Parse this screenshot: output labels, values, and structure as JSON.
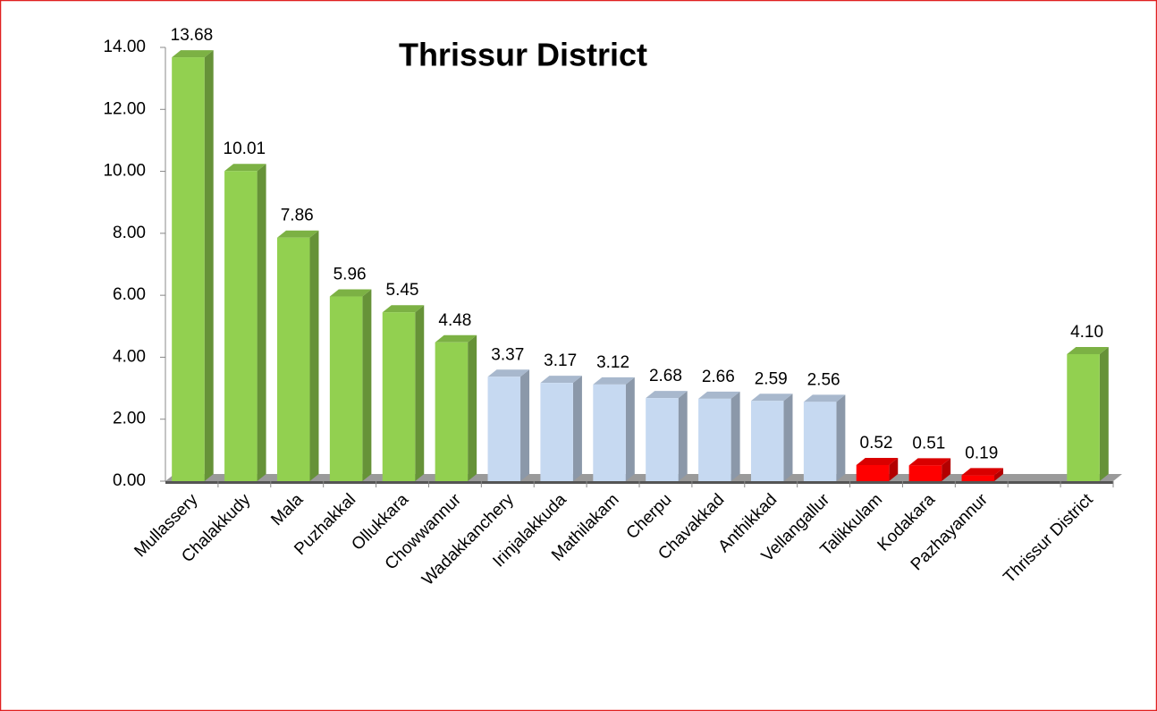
{
  "chart_data": {
    "type": "bar3d",
    "title": "Thrissur District",
    "categories": [
      "Mullassery",
      "Chalakkudy",
      "Mala",
      "Puzhakkal",
      "Ollukkara",
      "Chowwannur",
      "Wadakkanchery",
      "Irinjalakkuda",
      "Mathilakam",
      "Cherpu",
      "Chavakkad",
      "Anthikkad",
      "Vellangallur",
      "Talikkulam",
      "Kodakara",
      "Pazhayannur",
      null,
      "Thrissur District"
    ],
    "values": [
      13.68,
      10.01,
      7.86,
      5.96,
      5.45,
      4.48,
      3.37,
      3.17,
      3.12,
      2.68,
      2.66,
      2.59,
      2.56,
      0.52,
      0.51,
      0.19,
      null,
      4.1
    ],
    "value_labels": [
      "13.68",
      "10.01",
      "7.86",
      "5.96",
      "5.45",
      "4.48",
      "3.37",
      "3.17",
      "3.12",
      "2.68",
      "2.66",
      "2.59",
      "2.56",
      "0.52",
      "0.51",
      "0.19",
      null,
      "4.10"
    ],
    "colors": [
      "#92d050",
      "#92d050",
      "#92d050",
      "#92d050",
      "#92d050",
      "#92d050",
      "#c6d9f1",
      "#c6d9f1",
      "#c6d9f1",
      "#c6d9f1",
      "#c6d9f1",
      "#c6d9f1",
      "#c6d9f1",
      "#ff0000",
      "#ff0000",
      "#ff0000",
      null,
      "#92d050"
    ],
    "ylim": [
      0,
      14
    ],
    "yticks": [
      {
        "value": 0,
        "label": "0.00"
      },
      {
        "value": 2,
        "label": "2.00"
      },
      {
        "value": 4,
        "label": "4.00"
      },
      {
        "value": 6,
        "label": "6.00"
      },
      {
        "value": 8,
        "label": "8.00"
      },
      {
        "value": 10,
        "label": "10.00"
      },
      {
        "value": 12,
        "label": "12.00"
      },
      {
        "value": 14,
        "label": "14.00"
      }
    ]
  }
}
